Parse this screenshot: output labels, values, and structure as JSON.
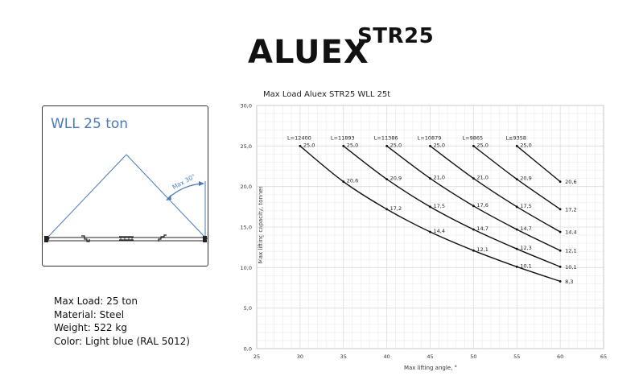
{
  "logo": {
    "main": "ALUEX",
    "sup": "STR25"
  },
  "diagram": {
    "title": "WLL 25 ton",
    "angle_label": "Max 30°",
    "color": "#4a7ab8"
  },
  "specs": {
    "max_load": "Max Load: 25 ton",
    "material": "Material: Steel",
    "weight": "Weight: 522 kg",
    "color": "Color: Light blue (RAL 5012)"
  },
  "chart_data": {
    "type": "line",
    "title": "Max Load Aluex STR25 WLL 25t",
    "xlabel": "Max lifting angle, °",
    "ylabel": "Max lifting  capacity, tonnes",
    "xlim": [
      25,
      65
    ],
    "ylim": [
      0,
      30
    ],
    "x_ticks": [
      "25",
      "30",
      "35",
      "40",
      "45",
      "50",
      "55",
      "60",
      "65"
    ],
    "y_ticks": [
      "0,0",
      "5,0",
      "10,0",
      "15,0",
      "20,0",
      "25,0",
      "30,0"
    ],
    "grid": true,
    "legend": "inline labels above each curve",
    "series": [
      {
        "name": "L=12400",
        "x": [
          30,
          35,
          40,
          45,
          50,
          55,
          60
        ],
        "values": [
          25.0,
          20.6,
          17.2,
          14.4,
          12.1,
          10.1,
          8.3
        ],
        "labels": [
          "25,0",
          "20,6",
          "17,2",
          "14,4",
          "12,1",
          "10,1",
          "8,3"
        ]
      },
      {
        "name": "L=11893",
        "x": [
          35,
          40,
          45,
          50,
          55,
          60
        ],
        "values": [
          25.0,
          20.9,
          17.5,
          14.7,
          12.3,
          10.1
        ],
        "labels": [
          "25,0",
          "20,9",
          "17,5",
          "14,7",
          "12,3",
          "10,1"
        ]
      },
      {
        "name": "L=11386",
        "x": [
          40,
          45,
          50,
          55,
          60
        ],
        "values": [
          25.0,
          21.0,
          17.6,
          14.7,
          12.1
        ],
        "labels": [
          "25,0",
          "21,0",
          "17,6",
          "14,7",
          "12,1"
        ]
      },
      {
        "name": "L=10879",
        "x": [
          45,
          50,
          55,
          60
        ],
        "values": [
          25.0,
          21.0,
          17.5,
          14.4
        ],
        "labels": [
          "25,0",
          "21,0",
          "17,5",
          "14,4"
        ]
      },
      {
        "name": "L=9865",
        "x": [
          50,
          55,
          60
        ],
        "values": [
          25.0,
          20.9,
          17.2
        ],
        "labels": [
          "25,0",
          "20,9",
          "17,2"
        ]
      },
      {
        "name": "L≤9358",
        "x": [
          55,
          60
        ],
        "values": [
          25.0,
          20.6
        ],
        "labels": [
          "25,0",
          "20,6"
        ]
      }
    ]
  }
}
